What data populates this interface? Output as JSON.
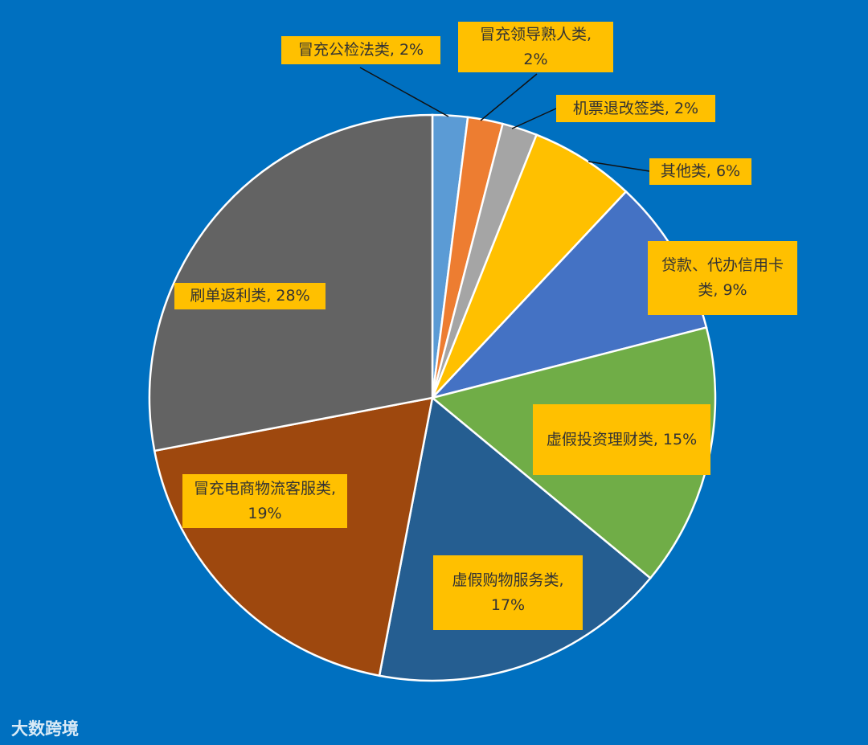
{
  "chart_data": {
    "type": "pie",
    "values": [
      2,
      2,
      2,
      6,
      9,
      15,
      17,
      19,
      28
    ],
    "value_labels": [
      "冒充公检法类, 2%",
      "冒充领导熟人类, 2%",
      "机票退改签类, 2%",
      "其他类, 6%",
      "贷款、代办信用卡类, 9%",
      "虚假投资理财类, 15%",
      "虚假购物服务类, 17%",
      "冒充电商物流客服类, 19%",
      "刷单返利类, 28%"
    ],
    "colors": [
      "#5b9bd5",
      "#ed7d31",
      "#a5a5a5",
      "#ffc000",
      "#4472c4",
      "#70ad47",
      "#255e91",
      "#9e480e",
      "#636363"
    ]
  },
  "watermark": "大数跨境"
}
